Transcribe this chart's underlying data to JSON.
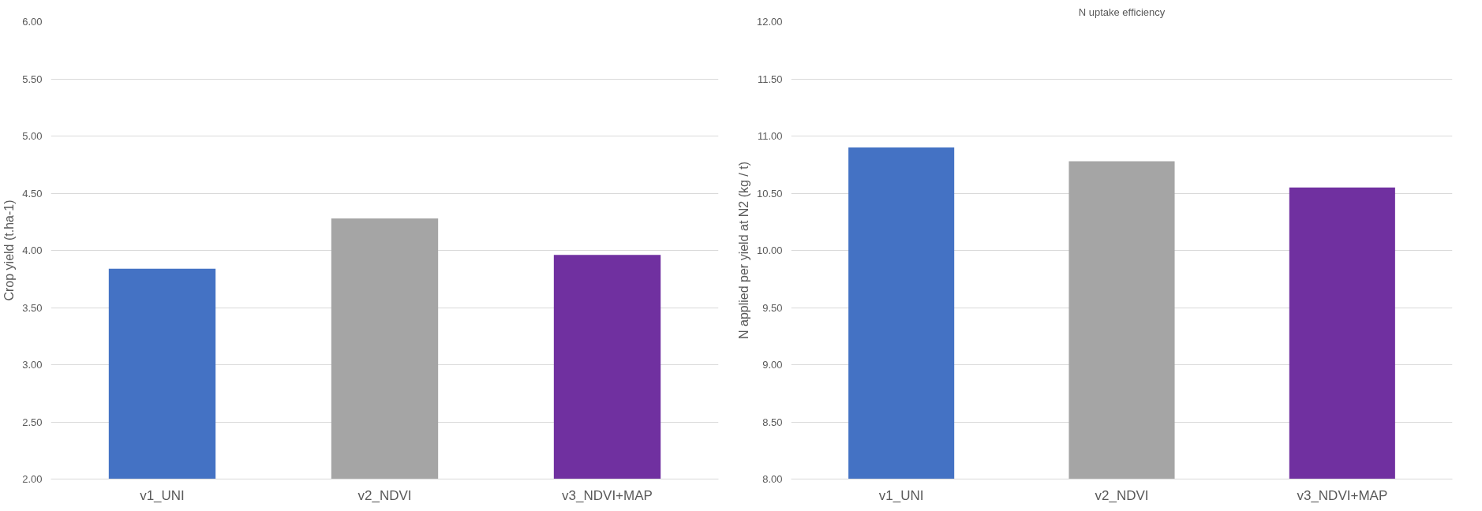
{
  "chart_data": [
    {
      "type": "bar",
      "ylabel": "Crop yield (t.ha-1)",
      "categories": [
        "v1_UNI",
        "v2_NDVI",
        "v3_NDVI+MAP"
      ],
      "values": [
        3.84,
        4.28,
        3.96
      ],
      "colors": [
        "#4472c4",
        "#a5a5a5",
        "#7030a0"
      ],
      "ylim": [
        2,
        6
      ],
      "yticks": [
        {
          "value": 2,
          "label": "2.00"
        },
        {
          "value": 2.5,
          "label": "2.50"
        },
        {
          "value": 3,
          "label": "3.00"
        },
        {
          "value": 3.5,
          "label": "3.50"
        },
        {
          "value": 4,
          "label": "4.00"
        },
        {
          "value": 4.5,
          "label": "4.50"
        },
        {
          "value": 5,
          "label": "5.00"
        },
        {
          "value": 5.5,
          "label": "5.50"
        },
        {
          "value": 6,
          "label": "6.00"
        }
      ],
      "grid": "y"
    },
    {
      "type": "bar",
      "title": "N uptake efficiency",
      "ylabel": "N applied per yield at N2 (kg / t)",
      "categories": [
        "v1_UNI",
        "v2_NDVI",
        "v3_NDVI+MAP"
      ],
      "values": [
        10.9,
        10.78,
        10.55
      ],
      "colors": [
        "#4472c4",
        "#a5a5a5",
        "#7030a0"
      ],
      "ylim": [
        8,
        12
      ],
      "yticks": [
        {
          "value": 8,
          "label": "8.00"
        },
        {
          "value": 8.5,
          "label": "8.50"
        },
        {
          "value": 9,
          "label": "9.00"
        },
        {
          "value": 9.5,
          "label": "9.50"
        },
        {
          "value": 10,
          "label": "10.00"
        },
        {
          "value": 10.5,
          "label": "10.50"
        },
        {
          "value": 11,
          "label": "11.00"
        },
        {
          "value": 11.5,
          "label": "11.50"
        },
        {
          "value": 12,
          "label": "12.00"
        }
      ],
      "grid": "y"
    }
  ]
}
